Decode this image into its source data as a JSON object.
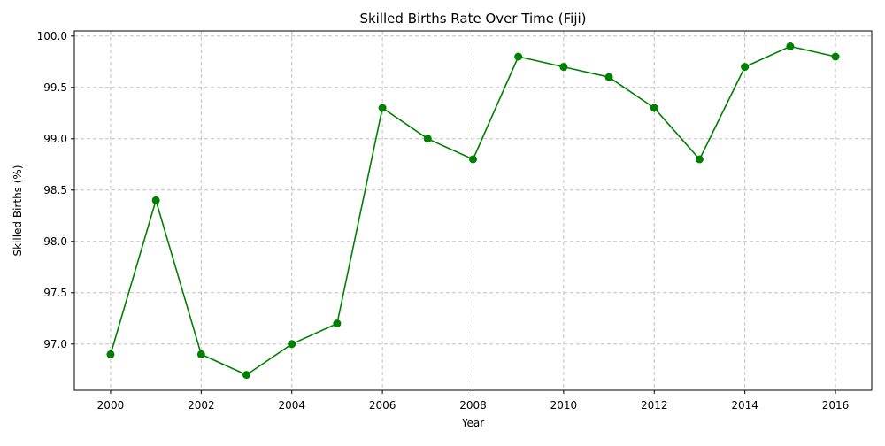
{
  "chart_data": {
    "type": "line",
    "title": "Skilled Births Rate Over Time (Fiji)",
    "xlabel": "Year",
    "ylabel": "Skilled Births (%)",
    "x": [
      2000,
      2001,
      2002,
      2003,
      2004,
      2005,
      2006,
      2007,
      2008,
      2009,
      2010,
      2011,
      2012,
      2013,
      2014,
      2015,
      2016
    ],
    "series": [
      {
        "values": [
          96.9,
          98.4,
          96.9,
          96.7,
          97.0,
          97.2,
          99.3,
          99.0,
          98.8,
          99.8,
          99.7,
          99.6,
          99.3,
          98.8,
          99.7,
          99.9,
          99.8
        ],
        "color": "#008000",
        "marker": "circle"
      }
    ],
    "xlim": [
      1999.2,
      2016.8
    ],
    "ylim": [
      96.55,
      100.05
    ],
    "x_ticks": [
      "2000",
      "2002",
      "2004",
      "2006",
      "2008",
      "2010",
      "2012",
      "2014",
      "2016"
    ],
    "y_ticks": [
      "97.0",
      "97.5",
      "98.0",
      "98.5",
      "99.0",
      "99.5",
      "100.0"
    ],
    "grid": true,
    "grid_style": "dashed",
    "grid_color": "#c0c0c0",
    "legend": "none"
  }
}
